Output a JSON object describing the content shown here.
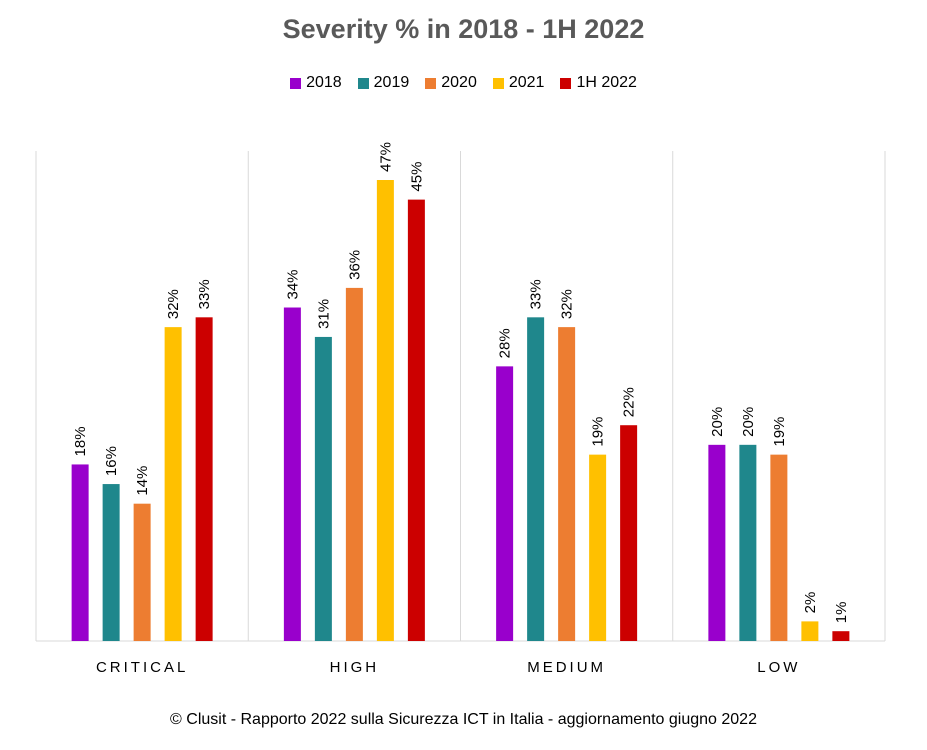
{
  "chart_data": {
    "type": "bar",
    "title": "Severity % in 2018 - 1H 2022",
    "categories": [
      "CRITICAL",
      "HIGH",
      "MEDIUM",
      "LOW"
    ],
    "series": [
      {
        "name": "2018",
        "color": "#9900cc",
        "values": [
          18,
          34,
          28,
          20
        ]
      },
      {
        "name": "2019",
        "color": "#1f878c",
        "values": [
          16,
          31,
          33,
          20
        ]
      },
      {
        "name": "2020",
        "color": "#ed7d31",
        "values": [
          14,
          36,
          32,
          19
        ]
      },
      {
        "name": "2021",
        "color": "#ffc000",
        "values": [
          32,
          47,
          19,
          2
        ]
      },
      {
        "name": "1H 2022",
        "color": "#cc0000",
        "values": [
          33,
          45,
          22,
          1
        ]
      }
    ],
    "value_suffix": "%",
    "ylim": [
      0,
      50
    ],
    "legend_position": "top",
    "grid": false
  },
  "footer": "© Clusit - Rapporto 2022 sulla Sicurezza ICT in Italia - aggiornamento giugno 2022"
}
